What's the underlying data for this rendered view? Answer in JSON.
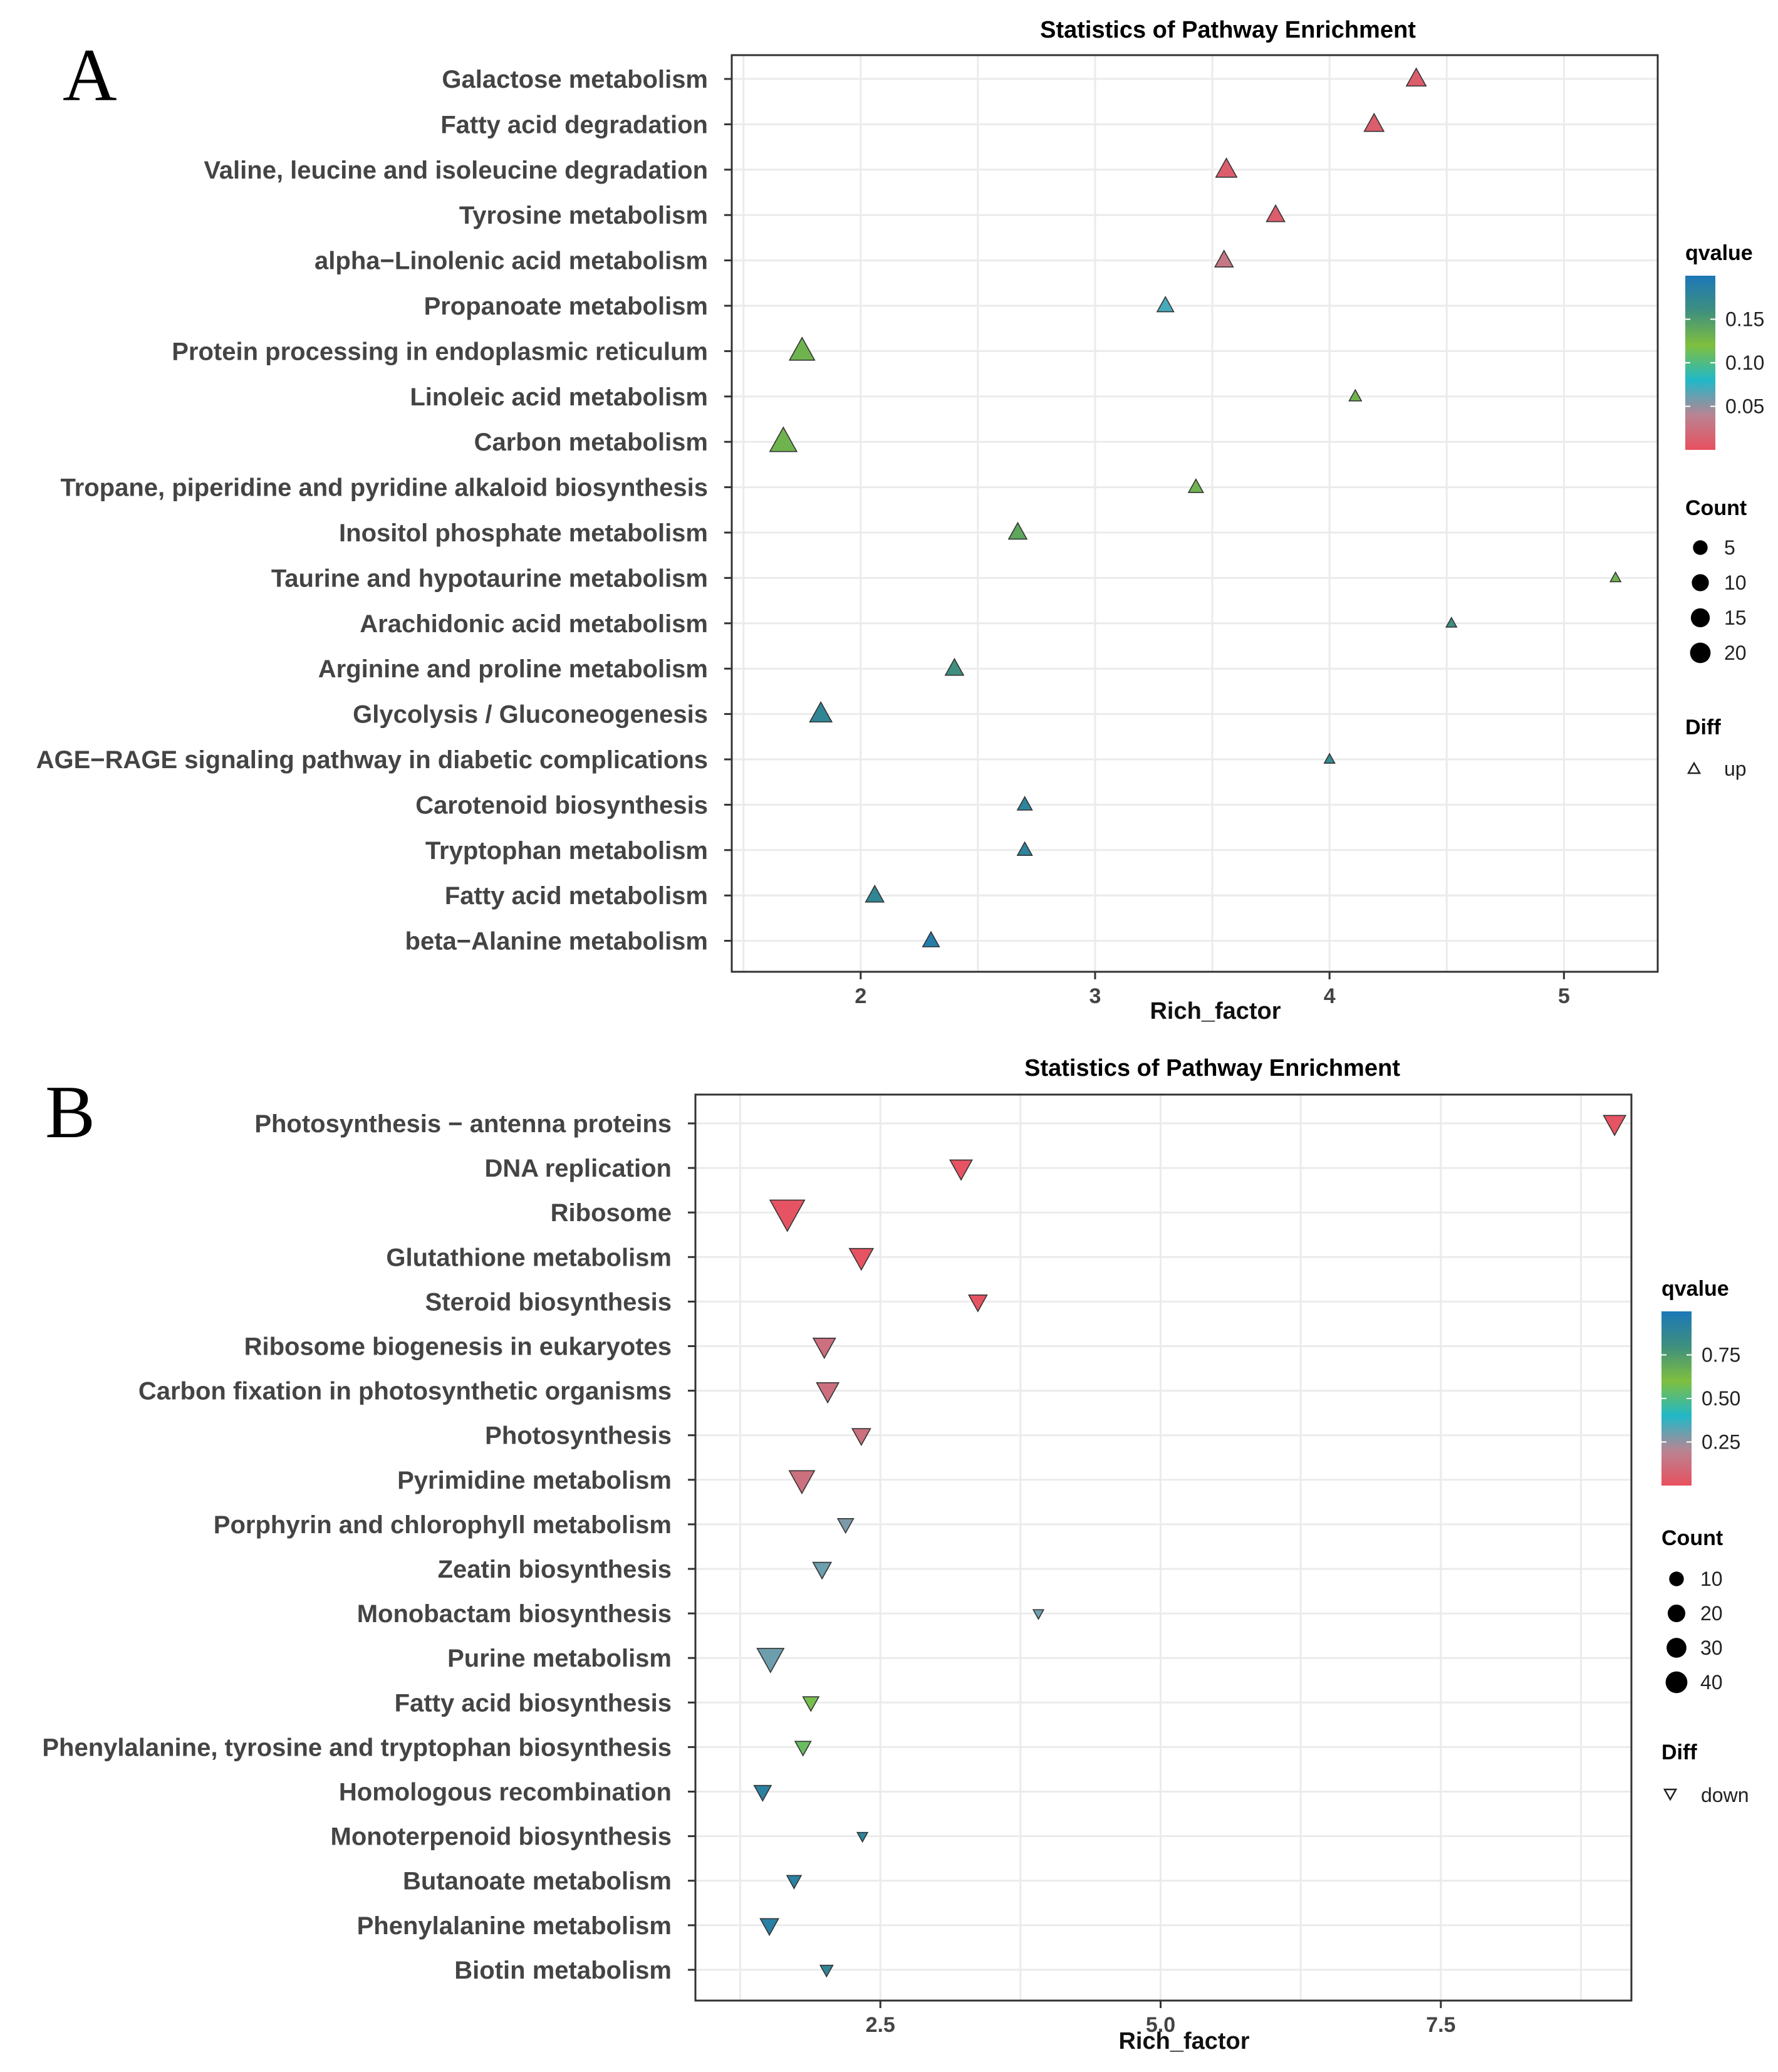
{
  "chart_data": [
    {
      "panel_label": "A",
      "type": "scatter",
      "title": "Statistics of Pathway Enrichment",
      "xlabel": "Rich_factor",
      "ylabel": "",
      "xlim": [
        1.45,
        5.4
      ],
      "xticks": [
        2,
        3,
        4,
        5
      ],
      "xtick_labels": [
        "2",
        "3",
        "4",
        "5"
      ],
      "categories": [
        "Galactose metabolism",
        "Fatty acid degradation",
        "Valine, leucine and isoleucine degradation",
        "Tyrosine metabolism",
        "alpha−Linolenic acid metabolism",
        "Propanoate metabolism",
        "Protein processing in endoplasmic reticulum",
        "Linoleic acid metabolism",
        "Carbon metabolism",
        "Tropane, piperidine and pyridine alkaloid biosynthesis",
        "Inositol phosphate metabolism",
        "Taurine and hypotaurine metabolism",
        "Arachidonic acid metabolism",
        "Arginine and proline metabolism",
        "Glycolysis / Gluconeogenesis",
        "AGE−RAGE signaling pathway in diabetic complications",
        "Carotenoid biosynthesis",
        "Tryptophan metabolism",
        "Fatty acid metabolism",
        "beta−Alanine metabolism"
      ],
      "rich_factor": [
        4.37,
        4.19,
        3.56,
        3.77,
        3.55,
        3.3,
        1.75,
        4.11,
        1.67,
        3.43,
        2.67,
        5.22,
        4.52,
        2.4,
        1.83,
        4.0,
        2.7,
        2.7,
        2.06,
        2.3
      ],
      "qvalue": [
        0.01,
        0.01,
        0.01,
        0.01,
        0.03,
        0.07,
        0.13,
        0.13,
        0.13,
        0.13,
        0.14,
        0.13,
        0.16,
        0.16,
        0.175,
        0.17,
        0.18,
        0.18,
        0.175,
        0.19
      ],
      "count": [
        5,
        5,
        6,
        4,
        4,
        3,
        10,
        1,
        12,
        2,
        4,
        0.5,
        0.5,
        4,
        7,
        0.5,
        2,
        2,
        4,
        3
      ],
      "diff": "up",
      "legend": {
        "qvalue_title": "qvalue",
        "qvalue_ticks": [
          0.05,
          0.1,
          0.15
        ],
        "qvalue_tick_labels": [
          "0.05",
          "0.10",
          "0.15"
        ],
        "qvalue_range": [
          0,
          0.2
        ],
        "count_title": "Count",
        "count_values": [
          5,
          10,
          15,
          20
        ],
        "count_labels": [
          "5",
          "10",
          "15",
          "20"
        ],
        "diff_title": "Diff",
        "diff_label": "up"
      },
      "colors": [
        "#e8505f",
        "#b98492",
        "#21b8c8",
        "#7fbf3f",
        "#3e8f7f",
        "#1c78b8"
      ]
    },
    {
      "panel_label": "B",
      "type": "scatter",
      "title": "Statistics of Pathway Enrichment",
      "xlabel": "Rich_factor",
      "ylabel": "",
      "xlim": [
        0.85,
        9.2
      ],
      "xticks": [
        2.5,
        5.0,
        7.5
      ],
      "xtick_labels": [
        "2.5",
        "5.0",
        "7.5"
      ],
      "categories": [
        "Photosynthesis − antenna proteins",
        "DNA replication",
        "Ribosome",
        "Glutathione metabolism",
        "Steroid biosynthesis",
        "Ribosome biogenesis in eukaryotes",
        "Carbon fixation in photosynthetic organisms",
        "Photosynthesis",
        "Pyrimidine metabolism",
        "Porphyrin and chlorophyll metabolism",
        "Zeatin biosynthesis",
        "Monobactam biosynthesis",
        "Purine metabolism",
        "Fatty acid biosynthesis",
        "Phenylalanine, tyrosine and tryptophan biosynthesis",
        "Homologous recombination",
        "Monoterpenoid biosynthesis",
        "Butanoate metabolism",
        "Phenylalanine metabolism",
        "Biotin metabolism"
      ],
      "rich_factor": [
        9.05,
        3.22,
        1.67,
        2.33,
        3.37,
        2.0,
        2.03,
        2.33,
        1.8,
        2.19,
        1.98,
        3.91,
        1.52,
        1.88,
        1.81,
        1.45,
        2.34,
        1.73,
        1.51,
        2.02
      ],
      "qvalue": [
        0.01,
        0.01,
        0.01,
        0.01,
        0.01,
        0.12,
        0.12,
        0.12,
        0.12,
        0.28,
        0.3,
        0.3,
        0.3,
        0.58,
        0.55,
        0.92,
        0.9,
        0.92,
        0.93,
        0.88
      ],
      "count": [
        10,
        10,
        30,
        12,
        6,
        10,
        10,
        6,
        14,
        4,
        6,
        1,
        16,
        4,
        4,
        5,
        1,
        3,
        6,
        2
      ],
      "diff": "down",
      "legend": {
        "qvalue_title": "qvalue",
        "qvalue_ticks": [
          0.25,
          0.5,
          0.75
        ],
        "qvalue_tick_labels": [
          "0.25",
          "0.50",
          "0.75"
        ],
        "qvalue_range": [
          0,
          1
        ],
        "count_title": "Count",
        "count_values": [
          10,
          20,
          30,
          40
        ],
        "count_labels": [
          "10",
          "20",
          "30",
          "40"
        ],
        "diff_title": "Diff",
        "diff_label": "down"
      },
      "colors": [
        "#e8505f",
        "#b98492",
        "#21b8c8",
        "#7fbf3f",
        "#3e8f7f",
        "#1c78b8"
      ]
    }
  ]
}
